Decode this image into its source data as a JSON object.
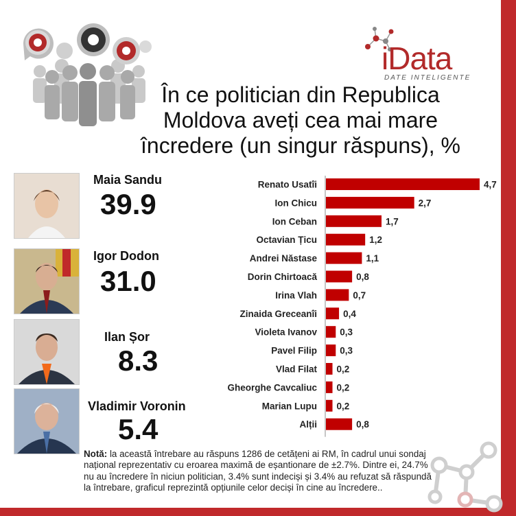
{
  "header": {
    "logo_text": "iData",
    "logo_tagline": "DATE INTELIGENTE",
    "title": "În ce politician din Republica Moldova aveți cea mai mare încredere (un singur răspuns), %"
  },
  "leaders": [
    {
      "name": "Maia Sandu",
      "value": "39.9"
    },
    {
      "name": "Igor Dodon",
      "value": "31.0"
    },
    {
      "name": "Ilan Șor",
      "value": "8.3"
    },
    {
      "name": "Vladimir Voronin",
      "value": "5.4"
    }
  ],
  "chart_data": {
    "type": "bar",
    "orientation": "horizontal",
    "title": "",
    "xlabel": "",
    "ylabel": "",
    "categories": [
      "Renato Usatîi",
      "Ion Chicu",
      "Ion Ceban",
      "Octavian Țicu",
      "Andrei Năstase",
      "Dorin Chirtoacă",
      "Irina Vlah",
      "Zinaida Greceanîi",
      "Violeta Ivanov",
      "Pavel Filip",
      "Vlad Filat",
      "Gheorghe Cavcaliuc",
      "Marian Lupu",
      "Alții"
    ],
    "values": [
      4.7,
      2.7,
      1.7,
      1.2,
      1.1,
      0.8,
      0.7,
      0.4,
      0.3,
      0.3,
      0.2,
      0.2,
      0.2,
      0.8
    ],
    "value_labels": [
      "4,7",
      "2,7",
      "1,7",
      "1,2",
      "1,1",
      "0,8",
      "0,7",
      "0,4",
      "0,3",
      "0,3",
      "0,2",
      "0,2",
      "0,2",
      "0,8"
    ],
    "xlim": [
      0,
      4.7
    ],
    "bar_color": "#c00000",
    "grid": false,
    "legend": "none"
  },
  "note": {
    "label": "Notă:",
    "text": "la această întrebare au răspuns 1286 de cetățeni ai RM, în cadrul unui sondaj național reprezentativ cu eroarea maximă de eșantionare de ±2.7%. Dintre ei, 24.7% nu au încredere în niciun politician, 3.4% sunt indeciși și 3.4% au refuzat să răspundă la întrebare, graficul reprezintă opțiunile celor deciși în cine au încredere.."
  },
  "colors": {
    "accent": "#c0292b",
    "bar": "#c00000",
    "text": "#111111"
  }
}
